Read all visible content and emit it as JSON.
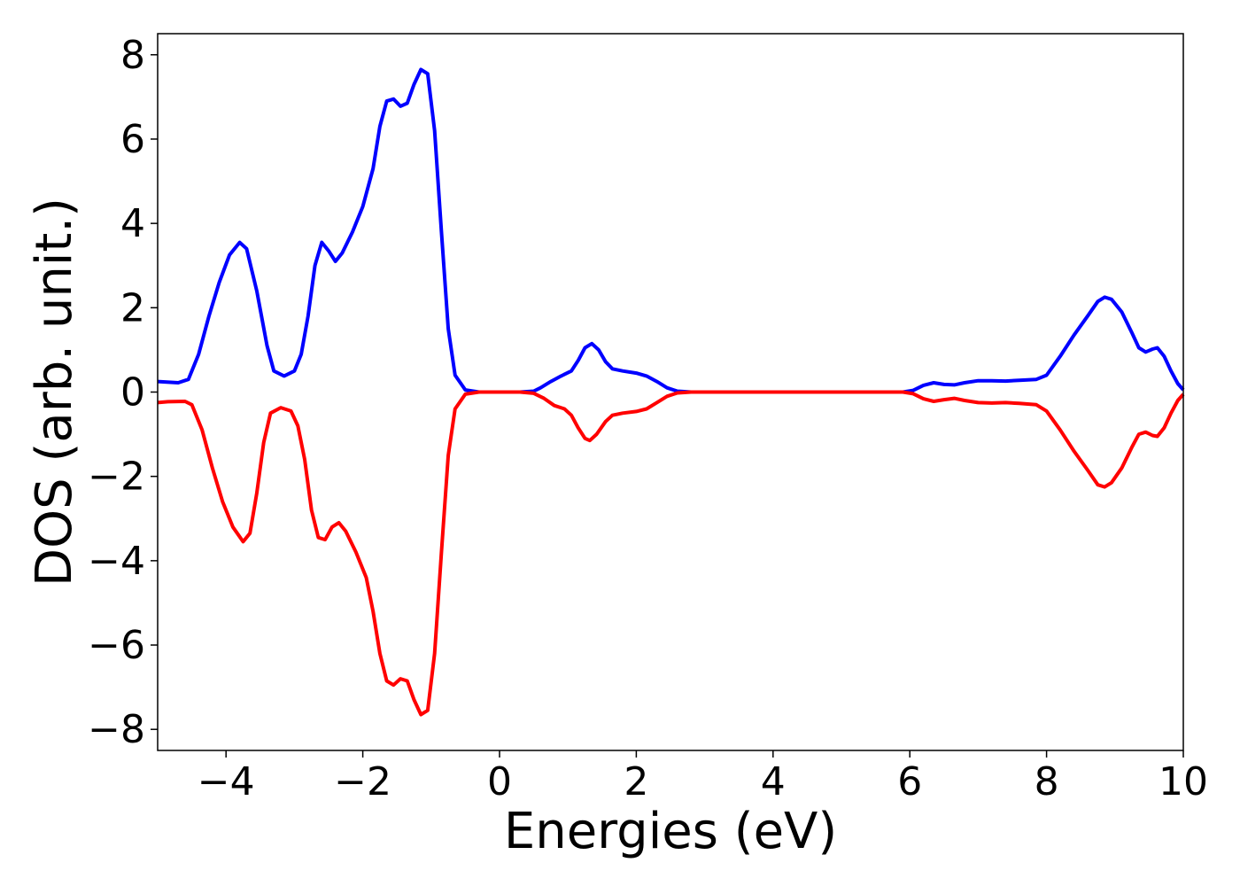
{
  "chart_data": {
    "type": "line",
    "title": "",
    "xlabel": "Energies (eV)",
    "ylabel": "DOS (arb. unit.)",
    "xlim": [
      -5,
      10
    ],
    "ylim": [
      -8.5,
      8.5
    ],
    "xticks": [
      -4,
      -2,
      0,
      2,
      4,
      6,
      8,
      10
    ],
    "yticks": [
      -8,
      -6,
      -4,
      -2,
      0,
      2,
      4,
      6,
      8
    ],
    "xtick_labels": [
      "−4",
      "−2",
      "0",
      "2",
      "4",
      "6",
      "8",
      "10"
    ],
    "ytick_labels": [
      "−8",
      "−6",
      "−4",
      "−2",
      "0",
      "2",
      "4",
      "6",
      "8"
    ],
    "grid": false,
    "legend": "none",
    "series": [
      {
        "color": "#0000ff",
        "points": [
          [
            -5.0,
            0.25
          ],
          [
            -4.7,
            0.22
          ],
          [
            -4.55,
            0.3
          ],
          [
            -4.4,
            0.9
          ],
          [
            -4.25,
            1.8
          ],
          [
            -4.1,
            2.6
          ],
          [
            -3.95,
            3.25
          ],
          [
            -3.8,
            3.55
          ],
          [
            -3.7,
            3.4
          ],
          [
            -3.55,
            2.4
          ],
          [
            -3.4,
            1.1
          ],
          [
            -3.3,
            0.5
          ],
          [
            -3.15,
            0.38
          ],
          [
            -3.0,
            0.5
          ],
          [
            -2.9,
            0.9
          ],
          [
            -2.8,
            1.8
          ],
          [
            -2.7,
            3.0
          ],
          [
            -2.6,
            3.55
          ],
          [
            -2.5,
            3.35
          ],
          [
            -2.4,
            3.1
          ],
          [
            -2.3,
            3.3
          ],
          [
            -2.15,
            3.8
          ],
          [
            -2.0,
            4.4
          ],
          [
            -1.85,
            5.3
          ],
          [
            -1.75,
            6.3
          ],
          [
            -1.65,
            6.9
          ],
          [
            -1.55,
            6.95
          ],
          [
            -1.45,
            6.78
          ],
          [
            -1.35,
            6.85
          ],
          [
            -1.25,
            7.3
          ],
          [
            -1.15,
            7.65
          ],
          [
            -1.05,
            7.55
          ],
          [
            -0.95,
            6.2
          ],
          [
            -0.85,
            3.8
          ],
          [
            -0.75,
            1.5
          ],
          [
            -0.65,
            0.4
          ],
          [
            -0.5,
            0.05
          ],
          [
            -0.3,
            0.0
          ],
          [
            0.3,
            0.0
          ],
          [
            0.5,
            0.02
          ],
          [
            0.6,
            0.1
          ],
          [
            0.75,
            0.25
          ],
          [
            0.9,
            0.38
          ],
          [
            1.05,
            0.5
          ],
          [
            1.15,
            0.75
          ],
          [
            1.25,
            1.05
          ],
          [
            1.35,
            1.15
          ],
          [
            1.45,
            1.0
          ],
          [
            1.55,
            0.72
          ],
          [
            1.65,
            0.55
          ],
          [
            1.8,
            0.5
          ],
          [
            2.0,
            0.45
          ],
          [
            2.15,
            0.38
          ],
          [
            2.3,
            0.25
          ],
          [
            2.45,
            0.1
          ],
          [
            2.6,
            0.02
          ],
          [
            2.8,
            0.0
          ],
          [
            5.9,
            0.0
          ],
          [
            6.05,
            0.04
          ],
          [
            6.2,
            0.16
          ],
          [
            6.35,
            0.22
          ],
          [
            6.5,
            0.18
          ],
          [
            6.65,
            0.17
          ],
          [
            6.8,
            0.22
          ],
          [
            7.0,
            0.27
          ],
          [
            7.2,
            0.27
          ],
          [
            7.4,
            0.26
          ],
          [
            7.6,
            0.28
          ],
          [
            7.85,
            0.3
          ],
          [
            8.0,
            0.4
          ],
          [
            8.2,
            0.85
          ],
          [
            8.4,
            1.35
          ],
          [
            8.6,
            1.8
          ],
          [
            8.75,
            2.15
          ],
          [
            8.85,
            2.25
          ],
          [
            8.95,
            2.2
          ],
          [
            9.1,
            1.9
          ],
          [
            9.25,
            1.4
          ],
          [
            9.35,
            1.05
          ],
          [
            9.45,
            0.95
          ],
          [
            9.55,
            1.02
          ],
          [
            9.62,
            1.05
          ],
          [
            9.72,
            0.85
          ],
          [
            9.82,
            0.5
          ],
          [
            9.92,
            0.2
          ],
          [
            10.0,
            0.05
          ]
        ]
      },
      {
        "color": "#ff0000",
        "points": [
          [
            -5.0,
            -0.25
          ],
          [
            -4.85,
            -0.23
          ],
          [
            -4.6,
            -0.22
          ],
          [
            -4.5,
            -0.3
          ],
          [
            -4.35,
            -0.9
          ],
          [
            -4.2,
            -1.8
          ],
          [
            -4.05,
            -2.6
          ],
          [
            -3.9,
            -3.2
          ],
          [
            -3.75,
            -3.55
          ],
          [
            -3.65,
            -3.35
          ],
          [
            -3.55,
            -2.4
          ],
          [
            -3.45,
            -1.2
          ],
          [
            -3.35,
            -0.5
          ],
          [
            -3.2,
            -0.37
          ],
          [
            -3.05,
            -0.45
          ],
          [
            -2.95,
            -0.8
          ],
          [
            -2.85,
            -1.6
          ],
          [
            -2.75,
            -2.8
          ],
          [
            -2.65,
            -3.45
          ],
          [
            -2.55,
            -3.5
          ],
          [
            -2.45,
            -3.2
          ],
          [
            -2.35,
            -3.1
          ],
          [
            -2.25,
            -3.3
          ],
          [
            -2.1,
            -3.8
          ],
          [
            -1.95,
            -4.4
          ],
          [
            -1.85,
            -5.2
          ],
          [
            -1.75,
            -6.2
          ],
          [
            -1.65,
            -6.85
          ],
          [
            -1.55,
            -6.95
          ],
          [
            -1.45,
            -6.8
          ],
          [
            -1.35,
            -6.85
          ],
          [
            -1.25,
            -7.3
          ],
          [
            -1.15,
            -7.65
          ],
          [
            -1.05,
            -7.55
          ],
          [
            -0.95,
            -6.2
          ],
          [
            -0.85,
            -3.8
          ],
          [
            -0.75,
            -1.5
          ],
          [
            -0.65,
            -0.4
          ],
          [
            -0.5,
            -0.05
          ],
          [
            -0.3,
            0.0
          ],
          [
            0.3,
            0.0
          ],
          [
            0.5,
            -0.03
          ],
          [
            0.65,
            -0.15
          ],
          [
            0.8,
            -0.32
          ],
          [
            0.95,
            -0.4
          ],
          [
            1.05,
            -0.55
          ],
          [
            1.15,
            -0.85
          ],
          [
            1.25,
            -1.1
          ],
          [
            1.32,
            -1.15
          ],
          [
            1.42,
            -1.0
          ],
          [
            1.55,
            -0.7
          ],
          [
            1.65,
            -0.55
          ],
          [
            1.8,
            -0.5
          ],
          [
            2.0,
            -0.46
          ],
          [
            2.15,
            -0.4
          ],
          [
            2.3,
            -0.25
          ],
          [
            2.45,
            -0.1
          ],
          [
            2.6,
            -0.02
          ],
          [
            2.8,
            0.0
          ],
          [
            5.9,
            0.0
          ],
          [
            6.05,
            -0.04
          ],
          [
            6.2,
            -0.16
          ],
          [
            6.35,
            -0.22
          ],
          [
            6.5,
            -0.18
          ],
          [
            6.65,
            -0.15
          ],
          [
            6.8,
            -0.2
          ],
          [
            7.0,
            -0.25
          ],
          [
            7.2,
            -0.26
          ],
          [
            7.4,
            -0.25
          ],
          [
            7.6,
            -0.27
          ],
          [
            7.85,
            -0.3
          ],
          [
            8.0,
            -0.45
          ],
          [
            8.2,
            -0.9
          ],
          [
            8.4,
            -1.4
          ],
          [
            8.6,
            -1.85
          ],
          [
            8.75,
            -2.2
          ],
          [
            8.85,
            -2.25
          ],
          [
            8.95,
            -2.15
          ],
          [
            9.1,
            -1.8
          ],
          [
            9.25,
            -1.3
          ],
          [
            9.35,
            -1.0
          ],
          [
            9.45,
            -0.95
          ],
          [
            9.55,
            -1.03
          ],
          [
            9.62,
            -1.05
          ],
          [
            9.72,
            -0.85
          ],
          [
            9.82,
            -0.5
          ],
          [
            9.92,
            -0.2
          ],
          [
            10.0,
            -0.05
          ]
        ]
      }
    ]
  }
}
